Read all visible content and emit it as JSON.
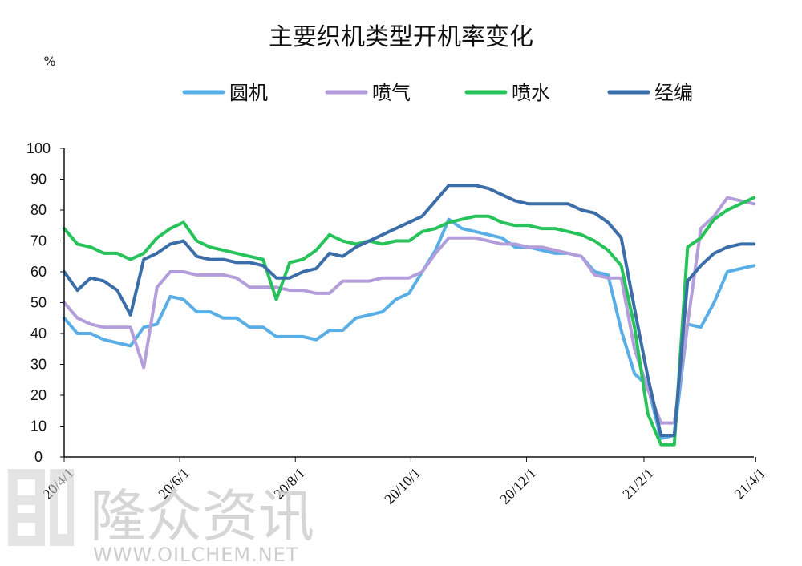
{
  "chart_data": {
    "type": "line",
    "title": "主要织机类型开机率变化",
    "y_unit": "%",
    "ylim": [
      0,
      100
    ],
    "yticks": [
      "0",
      "10",
      "20",
      "30",
      "40",
      "50",
      "60",
      "70",
      "80",
      "90",
      "100"
    ],
    "xticks": [
      "20/4/1",
      "20/6/1",
      "20/8/1",
      "20/10/1",
      "20/12/1",
      "21/2/1",
      "21/4/1"
    ],
    "x": [
      "2020-04-01",
      "2020-04-08",
      "2020-04-15",
      "2020-04-22",
      "2020-04-29",
      "2020-05-06",
      "2020-05-13",
      "2020-05-20",
      "2020-05-27",
      "2020-06-03",
      "2020-06-10",
      "2020-06-17",
      "2020-06-24",
      "2020-07-01",
      "2020-07-08",
      "2020-07-15",
      "2020-07-22",
      "2020-07-29",
      "2020-08-05",
      "2020-08-12",
      "2020-08-19",
      "2020-08-26",
      "2020-09-02",
      "2020-09-09",
      "2020-09-16",
      "2020-09-23",
      "2020-09-30",
      "2020-10-07",
      "2020-10-14",
      "2020-10-21",
      "2020-10-28",
      "2020-11-04",
      "2020-11-11",
      "2020-11-18",
      "2020-11-25",
      "2020-12-02",
      "2020-12-09",
      "2020-12-16",
      "2020-12-23",
      "2020-12-30",
      "2021-01-06",
      "2021-01-13",
      "2021-01-20",
      "2021-01-27",
      "2021-02-03",
      "2021-02-10",
      "2021-02-17",
      "2021-02-24",
      "2021-03-03",
      "2021-03-10",
      "2021-03-17",
      "2021-03-24",
      "2021-03-31"
    ],
    "grid": false,
    "legend_position": "top",
    "series": [
      {
        "name": "圆机",
        "color": "#5aaee6",
        "values": [
          45,
          40,
          40,
          38,
          37,
          36,
          42,
          43,
          52,
          51,
          47,
          47,
          45,
          45,
          42,
          42,
          39,
          39,
          39,
          38,
          41,
          41,
          45,
          46,
          47,
          51,
          53,
          60,
          67,
          77,
          74,
          73,
          72,
          71,
          68,
          68,
          67,
          66,
          66,
          65,
          60,
          59,
          41,
          27,
          23,
          6,
          7,
          43,
          42,
          50,
          60,
          61,
          62
        ]
      },
      {
        "name": "喷气",
        "color": "#b39ddb",
        "values": [
          50,
          45,
          43,
          42,
          42,
          42,
          29,
          55,
          60,
          60,
          59,
          59,
          59,
          58,
          55,
          55,
          55,
          54,
          54,
          53,
          53,
          57,
          57,
          57,
          58,
          58,
          58,
          60,
          66,
          71,
          71,
          71,
          70,
          69,
          69,
          68,
          68,
          67,
          66,
          65,
          59,
          58,
          58,
          35,
          22,
          11,
          11,
          43,
          74,
          78,
          84,
          83,
          82
        ]
      },
      {
        "name": "喷水",
        "color": "#27c35a",
        "values": [
          74,
          69,
          68,
          66,
          66,
          64,
          66,
          71,
          74,
          76,
          70,
          68,
          67,
          66,
          65,
          64,
          51,
          63,
          64,
          67,
          72,
          70,
          69,
          70,
          69,
          70,
          70,
          73,
          74,
          76,
          77,
          78,
          78,
          76,
          75,
          75,
          74,
          74,
          73,
          72,
          70,
          67,
          62,
          42,
          14,
          4,
          4,
          68,
          71,
          77,
          80,
          82,
          84
        ]
      },
      {
        "name": "经编",
        "color": "#3b6ea8",
        "values": [
          60,
          54,
          58,
          57,
          54,
          46,
          64,
          66,
          69,
          70,
          65,
          64,
          64,
          63,
          63,
          62,
          58,
          58,
          60,
          61,
          66,
          65,
          68,
          70,
          72,
          74,
          76,
          78,
          83,
          88,
          88,
          88,
          87,
          85,
          83,
          82,
          82,
          82,
          82,
          80,
          79,
          76,
          71,
          48,
          26,
          7,
          7,
          57,
          62,
          66,
          68,
          69,
          69
        ]
      }
    ]
  },
  "watermark": {
    "brand": "隆众资讯",
    "url": "WWW.OILCHEM.NET"
  }
}
